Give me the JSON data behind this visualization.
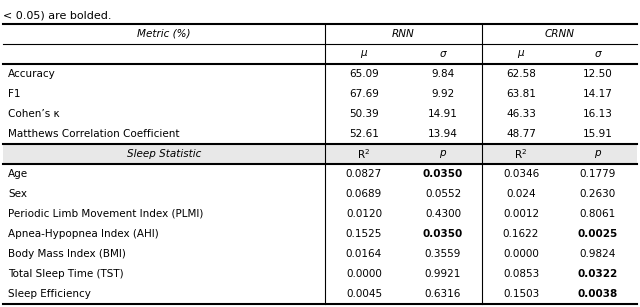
{
  "caption": "< 0.05) are bolded.",
  "metric_rows": [
    [
      "Accuracy",
      "65.09",
      "9.84",
      "62.58",
      "12.50"
    ],
    [
      "F1",
      "67.69",
      "9.92",
      "63.81",
      "14.17"
    ],
    [
      "Cohen’s κ",
      "50.39",
      "14.91",
      "46.33",
      "16.13"
    ],
    [
      "Matthews Correlation Coefficient",
      "52.61",
      "13.94",
      "48.77",
      "15.91"
    ]
  ],
  "sleep_rows": [
    [
      "Age",
      "0.0827",
      "0.0350",
      "0.0346",
      "0.1779"
    ],
    [
      "Sex",
      "0.0689",
      "0.0552",
      "0.024",
      "0.2630"
    ],
    [
      "Periodic Limb Movement Index (PLMI)",
      "0.0120",
      "0.4300",
      "0.0012",
      "0.8061"
    ],
    [
      "Apnea-Hypopnea Index (AHI)",
      "0.1525",
      "0.0350",
      "0.1622",
      "0.0025"
    ],
    [
      "Body Mass Index (BMI)",
      "0.0164",
      "0.3559",
      "0.0000",
      "0.9824"
    ],
    [
      "Total Sleep Time (TST)",
      "0.0000",
      "0.9921",
      "0.0853",
      "0.0322"
    ],
    [
      "Sleep Efficiency",
      "0.0045",
      "0.6316",
      "0.1503",
      "0.0038"
    ]
  ],
  "bold_sleep": [
    [
      false,
      true,
      false,
      false
    ],
    [
      false,
      false,
      false,
      false
    ],
    [
      false,
      false,
      false,
      false
    ],
    [
      false,
      true,
      false,
      true
    ],
    [
      false,
      false,
      false,
      false
    ],
    [
      false,
      false,
      false,
      true
    ],
    [
      false,
      false,
      false,
      true
    ]
  ],
  "gray_bg": "#e8e8e8",
  "lw_thick": 1.5,
  "lw_thin": 0.8,
  "fs": 7.5
}
